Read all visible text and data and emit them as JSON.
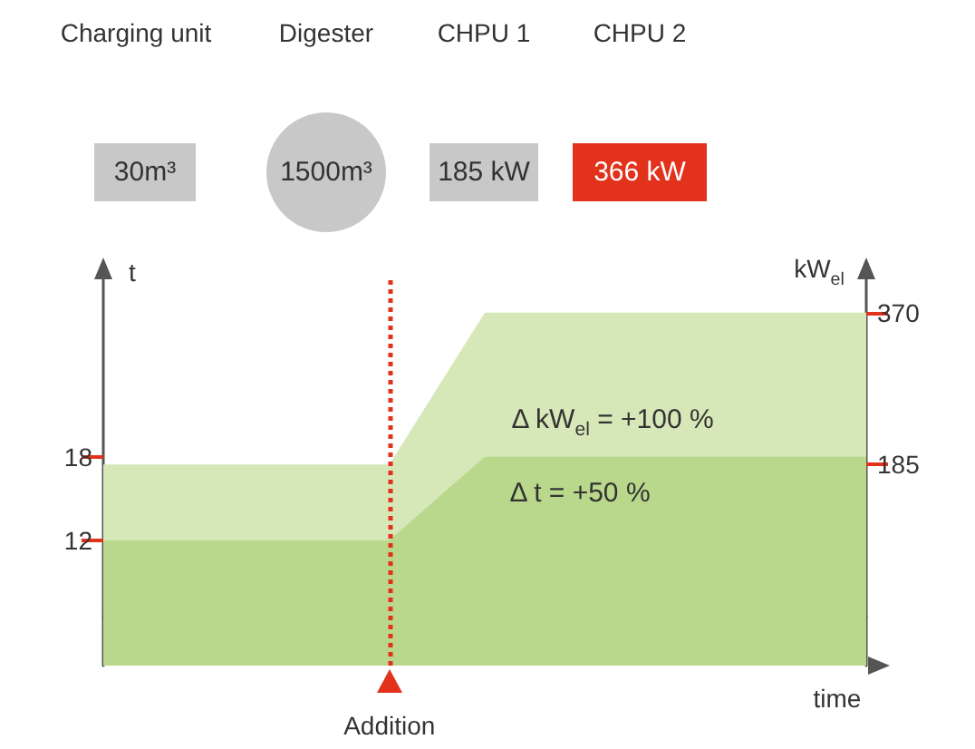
{
  "chart_data": {
    "type": "area",
    "xlabel": "time",
    "ylabel": "t",
    "y2label": "kW$_{el}$",
    "annotations": [
      "Charging unit",
      "30m³",
      "Digester",
      "1500m³",
      "CHPU 1",
      "185 kW",
      "CHPU 2",
      "366 kW",
      "Δ kW$_{el}$ = +100 %",
      "Δ t = +50 %",
      "Addition"
    ],
    "categories": [
      null,
      null,
      null,
      null,
      null,
      null,
      null,
      null,
      null
    ],
    "series": [
      {
        "values": [
          185,
          185,
          185,
          185,
          370,
          370,
          370,
          370,
          370
        ],
        "color": "#d6e7b8",
        "axis": "y2"
      },
      {
        "values": [
          12,
          12,
          12,
          12,
          18,
          18,
          18,
          18,
          18
        ],
        "color": "#bad88c"
      }
    ],
    "ylim": [
      3,
      31
    ],
    "yticks": [
      12,
      18
    ],
    "y2lim": [
      -60,
      415
    ],
    "y2ticks": [
      185,
      370
    ],
    "grid": false,
    "marker": "none"
  }
}
